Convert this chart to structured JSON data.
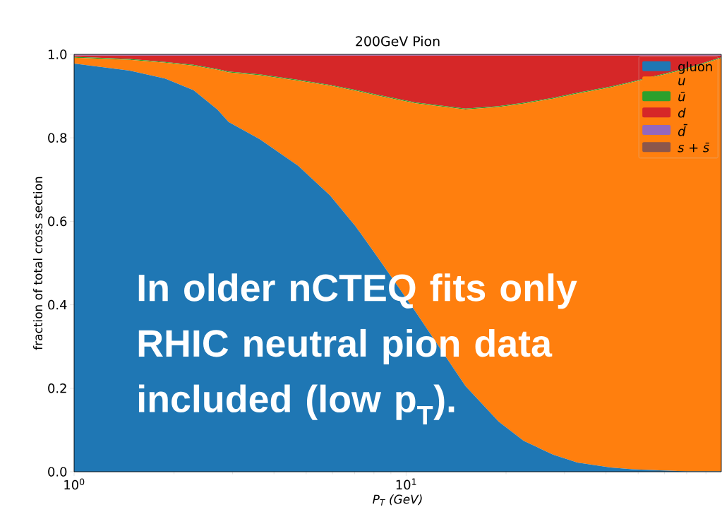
{
  "chart_data": {
    "type": "area",
    "stacked": true,
    "log": "x",
    "title": "200GeV Pion",
    "xlabel": "P$_{T}$ (GeV)",
    "ylabel": "fraction of total cross section",
    "legend": "top right",
    "annotations": [
      "In older nCTEQ fits only RHIC neutral pion data included (low p$_{T}$)."
    ],
    "x": [
      1,
      1.47,
      1.88,
      2.29,
      2.7,
      2.92,
      3.62,
      4.73,
      5.9,
      7.03,
      8.22,
      10.66,
      15.1,
      19,
      22.6,
      27.7,
      32.8,
      41.3,
      48,
      70,
      89
    ],
    "xlim": [
      1,
      89
    ],
    "ylim": [
      0,
      1
    ],
    "xticks": [
      {
        "value": 1,
        "label": "10$^{0}$"
      },
      {
        "value": 2,
        "label": null
      },
      {
        "value": 3,
        "label": null
      },
      {
        "value": 4,
        "label": null
      },
      {
        "value": 5,
        "label": null
      },
      {
        "value": 6,
        "label": null
      },
      {
        "value": 7,
        "label": null
      },
      {
        "value": 8,
        "label": null
      },
      {
        "value": 9,
        "label": null
      },
      {
        "value": 10,
        "label": "10$^{1}$"
      },
      {
        "value": 20,
        "label": null
      },
      {
        "value": 30,
        "label": null
      },
      {
        "value": 40,
        "label": null
      },
      {
        "value": 50,
        "label": null
      },
      {
        "value": 60,
        "label": null
      },
      {
        "value": 70,
        "label": null
      },
      {
        "value": 80,
        "label": null
      }
    ],
    "yticks": [
      {
        "value": 0,
        "label": "0.0"
      },
      0.2,
      0.4,
      0.6,
      0.8,
      {
        "value": 1,
        "label": "1.0"
      }
    ],
    "series": [
      {
        "name": "gluon",
        "color": "#1f77b4",
        "values": [
          0.978,
          0.961,
          0.942,
          0.914,
          0.868,
          0.838,
          0.797,
          0.733,
          0.662,
          0.589,
          0.513,
          0.384,
          0.205,
          0.12,
          0.074,
          0.041,
          0.022,
          0.01,
          0.006,
          0.001,
          0.001
        ]
      },
      {
        "name": "*u*",
        "color": "#ff7f0e",
        "values": [
          0.014,
          0.026,
          0.038,
          0.059,
          0.095,
          0.119,
          0.153,
          0.204,
          0.263,
          0.324,
          0.388,
          0.499,
          0.663,
          0.754,
          0.808,
          0.853,
          0.884,
          0.911,
          0.927,
          0.964,
          0.99
        ]
      },
      {
        "name": "*ū*",
        "color": "#2ca02c",
        "values": [
          0.002,
          0.002,
          0.002,
          0.002,
          0.002,
          0.002,
          0.002,
          0.002,
          0.002,
          0.002,
          0.002,
          0.002,
          0.002,
          0.002,
          0.002,
          0.002,
          0.002,
          0.002,
          0.002,
          0.002,
          0.002
        ]
      },
      {
        "name": "*d*",
        "color": "#d62728",
        "values": [
          0.003,
          0.008,
          0.015,
          0.022,
          0.032,
          0.038,
          0.045,
          0.058,
          0.07,
          0.082,
          0.094,
          0.112,
          0.127,
          0.121,
          0.113,
          0.101,
          0.089,
          0.074,
          0.062,
          0.03,
          0.004
        ]
      },
      {
        "name": "*d̄*",
        "color": "#9467bd",
        "values": [
          0.002,
          0.002,
          0.002,
          0.002,
          0.002,
          0.002,
          0.002,
          0.002,
          0.002,
          0.002,
          0.002,
          0.002,
          0.002,
          0.002,
          0.002,
          0.002,
          0.002,
          0.002,
          0.002,
          0.002,
          0.002
        ]
      },
      {
        "name": "*s* + *s̄*",
        "color": "#8c564b",
        "values": [
          0.001,
          0.001,
          0.001,
          0.001,
          0.001,
          0.001,
          0.001,
          0.001,
          0.001,
          0.001,
          0.001,
          0.001,
          0.001,
          0.001,
          0.001,
          0.001,
          0.001,
          0.001,
          0.001,
          0.001,
          0.001
        ]
      }
    ]
  }
}
